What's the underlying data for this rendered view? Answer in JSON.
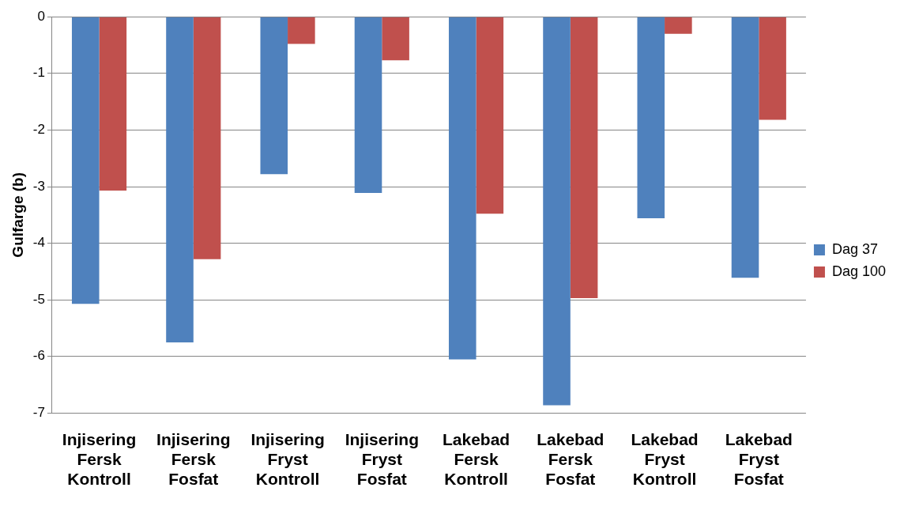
{
  "chart_data": {
    "type": "bar",
    "ylabel": "Gulfarge (b)",
    "categories": [
      "Injisering Fersk Kontroll",
      "Injisering Fersk Fosfat",
      "Injisering Fryst Kontroll",
      "Injisering Fryst Fosfat",
      "Lakebad Fersk Kontroll",
      "Lakebad Fersk Fosfat",
      "Lakebad Fryst Kontroll",
      "Lakebad Fryst Fosfat"
    ],
    "series": [
      {
        "name": "Dag 37",
        "color": "#4f81bd",
        "values": [
          -5.07,
          -5.75,
          -2.78,
          -3.11,
          -6.05,
          -6.86,
          -3.56,
          -4.61
        ]
      },
      {
        "name": "Dag 100",
        "color": "#c0504d",
        "values": [
          -3.07,
          -4.28,
          -0.48,
          -0.77,
          -3.48,
          -4.97,
          -0.3,
          -1.82
        ]
      }
    ],
    "ylim": [
      -7,
      0
    ],
    "yticks": [
      -7,
      -6,
      -5,
      -4,
      -3,
      -2,
      -1,
      0
    ],
    "grid": "y",
    "legend": "right"
  }
}
